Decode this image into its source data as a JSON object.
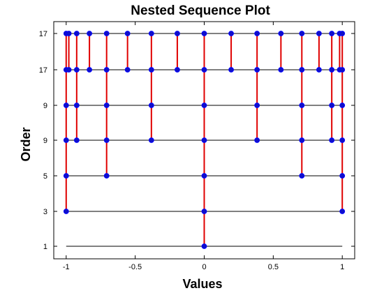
{
  "chart_data": {
    "type": "scatter",
    "title": "Nested Sequence Plot",
    "xlabel": "Values",
    "ylabel": "Order",
    "xlim": [
      -1.09,
      1.09
    ],
    "xticks": [
      -1,
      -0.5,
      0,
      0.5,
      1
    ],
    "xtick_labels": [
      "-1",
      "-0.5",
      "0",
      "0.5",
      "1"
    ],
    "level_labels": [
      "1",
      "3",
      "5",
      "9",
      "9",
      "17",
      "17"
    ],
    "grid": false,
    "colors": {
      "level_line": "#000000",
      "connector": "#e00000",
      "marker_fill": "#1010c8",
      "marker_edge": "#0000ff"
    },
    "levels": [
      {
        "order": 1,
        "points": [
          0
        ]
      },
      {
        "order": 3,
        "points": [
          -1,
          0,
          1
        ]
      },
      {
        "order": 5,
        "points": [
          -1,
          -0.7071,
          0,
          0.7071,
          1
        ]
      },
      {
        "order": 9,
        "points": [
          -1,
          -0.9239,
          -0.7071,
          -0.3827,
          0,
          0.3827,
          0.7071,
          0.9239,
          1
        ]
      },
      {
        "order": 9,
        "points": [
          -1,
          -0.9239,
          -0.7071,
          -0.3827,
          0,
          0.3827,
          0.7071,
          0.9239,
          1
        ]
      },
      {
        "order": 17,
        "points": [
          -1,
          -0.9808,
          -0.9239,
          -0.8315,
          -0.7071,
          -0.5556,
          -0.3827,
          -0.1951,
          0,
          0.1951,
          0.3827,
          0.5556,
          0.7071,
          0.8315,
          0.9239,
          0.9808,
          1
        ]
      },
      {
        "order": 17,
        "points": [
          -1,
          -0.9808,
          -0.9239,
          -0.8315,
          -0.7071,
          -0.5556,
          -0.3827,
          -0.1951,
          0,
          0.1951,
          0.3827,
          0.5556,
          0.7071,
          0.8315,
          0.9239,
          0.9808,
          1
        ]
      }
    ]
  }
}
